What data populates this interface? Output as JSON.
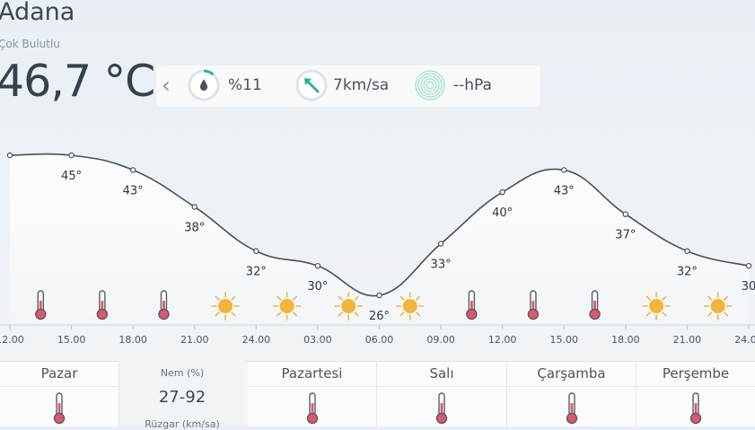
{
  "location": {
    "city": "Adana",
    "condition": "Çok Bulutlu"
  },
  "current": {
    "temperature": "46,7 °C"
  },
  "metrics": {
    "humidity": "%11",
    "humidity_pct": 11,
    "wind": "7km/sa",
    "pressure": "--hPa"
  },
  "chart_data": {
    "type": "line",
    "x": [
      "12.00",
      "15.00",
      "18.00",
      "21.00",
      "24.00",
      "03.00",
      "06.00",
      "09.00",
      "12.00",
      "15.00",
      "18.00",
      "21.00",
      "24.00"
    ],
    "points": [
      {
        "v": 45,
        "label": ""
      },
      {
        "v": 45,
        "label": "45°"
      },
      {
        "v": 43,
        "label": "43°"
      },
      {
        "v": 38,
        "label": "38°"
      },
      {
        "v": 32,
        "label": "32°"
      },
      {
        "v": 30,
        "label": "30°"
      },
      {
        "v": 26,
        "label": "26°"
      },
      {
        "v": 33,
        "label": "33°"
      },
      {
        "v": 40,
        "label": "40°"
      },
      {
        "v": 43,
        "label": "43°"
      },
      {
        "v": 37,
        "label": "37°"
      },
      {
        "v": 32,
        "label": "32°"
      },
      {
        "v": 30,
        "label": "30"
      }
    ],
    "icons": [
      "thermometer-icon",
      "thermometer-icon",
      "thermometer-icon",
      "sun-icon",
      "sun-icon",
      "sun-icon",
      "sun-icon",
      "thermometer-icon",
      "thermometer-icon",
      "thermometer-icon",
      "sun-icon",
      "sun-icon"
    ]
  },
  "days": [
    {
      "name": "Pazar"
    },
    {
      "name": "Pazartesi"
    },
    {
      "name": "Salı"
    },
    {
      "name": "Çarşamba"
    },
    {
      "name": "Perşembe"
    }
  ],
  "detail": {
    "label": "Nem (%)",
    "value": "27-92",
    "label2": "Rüzgar (km/sa)"
  },
  "colors": {
    "accent": "#2bb39a",
    "thermo": "#e0576a",
    "sun": "#f2b53c",
    "line": "#4a4f57"
  }
}
